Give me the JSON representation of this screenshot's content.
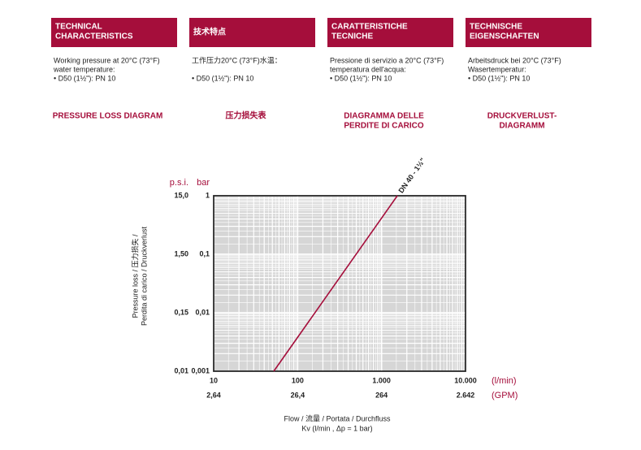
{
  "columns": [
    {
      "heading": [
        "TECHNICAL",
        "CHARACTERISTICS"
      ],
      "text": [
        "Working pressure at 20°C (73°F)",
        "water temperature:",
        "• D50 (1½\"):  PN 10"
      ],
      "diagram_title": [
        "PRESSURE LOSS DIAGRAM"
      ]
    },
    {
      "heading": [
        "技术特点"
      ],
      "text": [
        "工作压力20°C (73°F)水温：",
        "• D50 (1½\"):  PN 10"
      ],
      "diagram_title": [
        "压力损失表"
      ]
    },
    {
      "heading": [
        "CARATTERISTICHE",
        "TECNICHE"
      ],
      "text": [
        "Pressione di servizio a 20°C (73°F)",
        "temperatura dell'acqua:",
        "• D50 (1½\"):  PN 10"
      ],
      "diagram_title": [
        "DIAGRAMMA DELLE",
        "PERDITE DI CARICO"
      ]
    },
    {
      "heading": [
        "TECHNISCHE",
        "EIGENSCHAFTEN"
      ],
      "text": [
        "Arbeitsdruck bei 20°C (73°F)",
        "Wasertemperatur:",
        "• D50 (1½\"):  PN 10"
      ],
      "diagram_title": [
        "DRUCKVERLUST-",
        "DIAGRAMM"
      ]
    }
  ],
  "chart_data": {
    "type": "line",
    "y_unit": "bar",
    "y_unit_secondary": "p.s.i.",
    "x_unit": "(l/min)",
    "x_unit_secondary": "(GPM)",
    "y_label": [
      "Pressure loss / 压力损失 /",
      "Perdita di carico / Druckverlust"
    ],
    "x_label": [
      "Flow / 流量 / Portata / Durchfluss",
      "Kv (l/min , Δp = 1 bar)"
    ],
    "log_x": true,
    "log_y": true,
    "grid": true,
    "xlim": [
      10,
      10000
    ],
    "xticks": [
      10,
      100,
      {
        "value": 1000,
        "label": "1.000"
      },
      {
        "value": 10000,
        "label": "10.000"
      }
    ],
    "x_secondary_labels": [
      "2,64",
      "26,4",
      "264",
      "2.642"
    ],
    "ylim": [
      0.001,
      1
    ],
    "yticks": [
      {
        "value": 0.001,
        "label": "0,001"
      },
      {
        "value": 0.01,
        "label": "0,01"
      },
      {
        "value": 0.1,
        "label": "0,1"
      },
      1
    ],
    "y_secondary_labels": [
      "0,01",
      "0,15",
      "1,50",
      "15,0"
    ],
    "series": [
      {
        "name": "DN 40 - 1½\"",
        "color": "#a50e3b",
        "x": [
          52,
          1540
        ],
        "values": [
          0.001,
          1
        ]
      }
    ]
  }
}
